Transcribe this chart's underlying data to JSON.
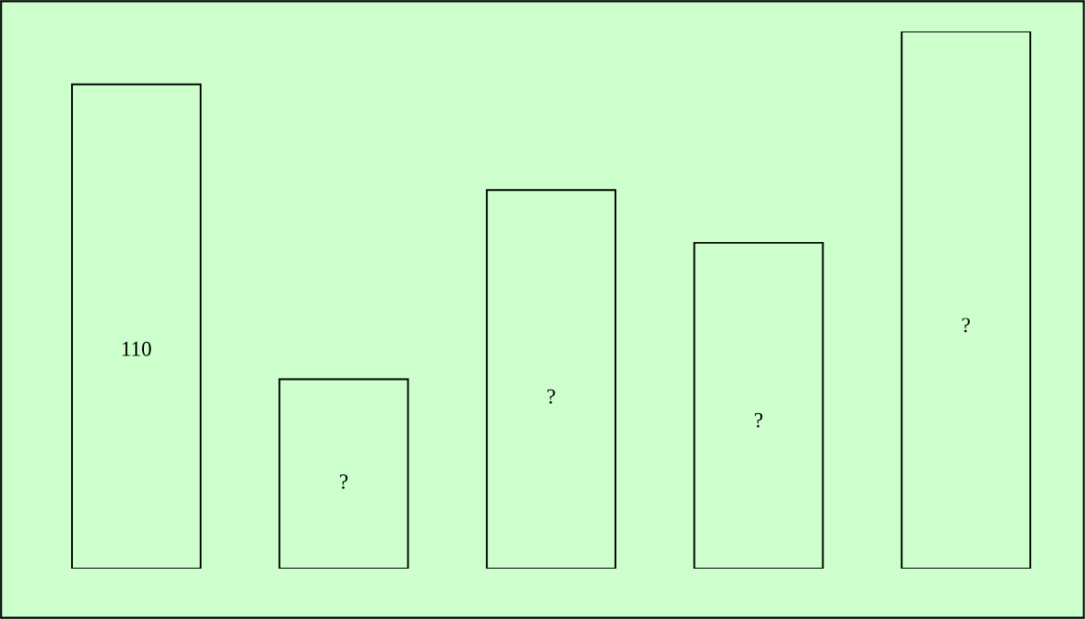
{
  "chart_data": {
    "type": "bar",
    "categories": [
      null,
      null,
      null,
      null,
      null
    ],
    "series": [
      {
        "color": "#ccffcc",
        "values": [
          110,
          43,
          86,
          74,
          122
        ],
        "value_labels": [
          "110",
          "?",
          "?",
          "?",
          "?"
        ]
      }
    ],
    "legend": false
  }
}
